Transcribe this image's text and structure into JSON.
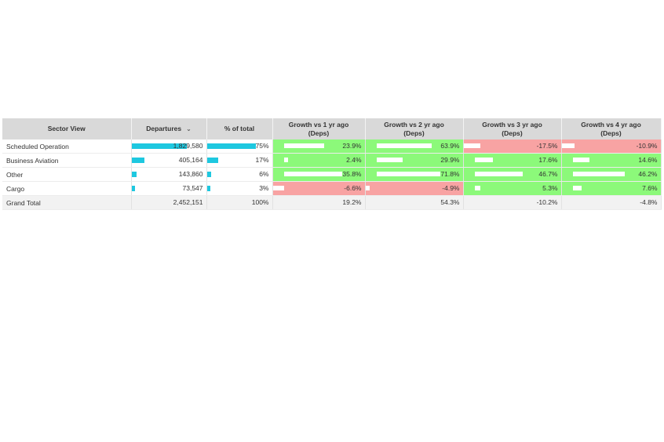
{
  "headers": {
    "sector": "Sector View",
    "departures": "Departures",
    "pct_total": "% of total",
    "g1": [
      "Growth vs 1 yr ago",
      "(Deps)"
    ],
    "g2": [
      "Growth vs 2 yr ago",
      "(Deps)"
    ],
    "g3": [
      "Growth vs 3 yr ago",
      "(Deps)"
    ],
    "g4": [
      "Growth vs 4 yr ago",
      "(Deps)"
    ]
  },
  "colors": {
    "bar": "#1ec8e0",
    "positive": "#8cf97a",
    "negative": "#f8a3a3",
    "header": "#d9d9d9"
  },
  "icons": {
    "sort": "chevron-down-icon"
  },
  "rows": [
    {
      "label": "Scheduled Operation",
      "departures": "1,829,580",
      "departures_frac": 0.74,
      "pct": "75%",
      "pct_frac": 0.75,
      "growth": [
        {
          "text": "23.9%",
          "sign": "pos",
          "frac": 0.52
        },
        {
          "text": "63.9%",
          "sign": "pos",
          "frac": 0.67
        },
        {
          "text": "-17.5%",
          "sign": "neg",
          "frac": 0.2
        },
        {
          "text": "-10.9%",
          "sign": "neg",
          "frac": 0.15
        }
      ]
    },
    {
      "label": "Business Aviation",
      "departures": "405,164",
      "departures_frac": 0.17,
      "pct": "17%",
      "pct_frac": 0.17,
      "growth": [
        {
          "text": "2.4%",
          "sign": "pos",
          "frac": 0.05
        },
        {
          "text": "29.9%",
          "sign": "pos",
          "frac": 0.31
        },
        {
          "text": "17.6%",
          "sign": "pos",
          "frac": 0.22
        },
        {
          "text": "14.6%",
          "sign": "pos",
          "frac": 0.2
        }
      ]
    },
    {
      "label": "Other",
      "departures": "143,860",
      "departures_frac": 0.06,
      "pct": "6%",
      "pct_frac": 0.06,
      "growth": [
        {
          "text": "35.8%",
          "sign": "pos",
          "frac": 0.76
        },
        {
          "text": "71.8%",
          "sign": "pos",
          "frac": 0.77
        },
        {
          "text": "46.7%",
          "sign": "pos",
          "frac": 0.58
        },
        {
          "text": "46.2%",
          "sign": "pos",
          "frac": 0.62
        }
      ]
    },
    {
      "label": "Cargo",
      "departures": "73,547",
      "departures_frac": 0.03,
      "pct": "3%",
      "pct_frac": 0.03,
      "growth": [
        {
          "text": "-6.6%",
          "sign": "neg",
          "frac": 0.14
        },
        {
          "text": "-4.9%",
          "sign": "neg",
          "frac": 0.05
        },
        {
          "text": "5.3%",
          "sign": "pos",
          "frac": 0.07
        },
        {
          "text": "7.6%",
          "sign": "pos",
          "frac": 0.1
        }
      ]
    }
  ],
  "total": {
    "label": "Grand Total",
    "departures": "2,452,151",
    "pct": "100%",
    "growth": [
      "19.2%",
      "54.3%",
      "-10.2%",
      "-4.8%"
    ]
  }
}
